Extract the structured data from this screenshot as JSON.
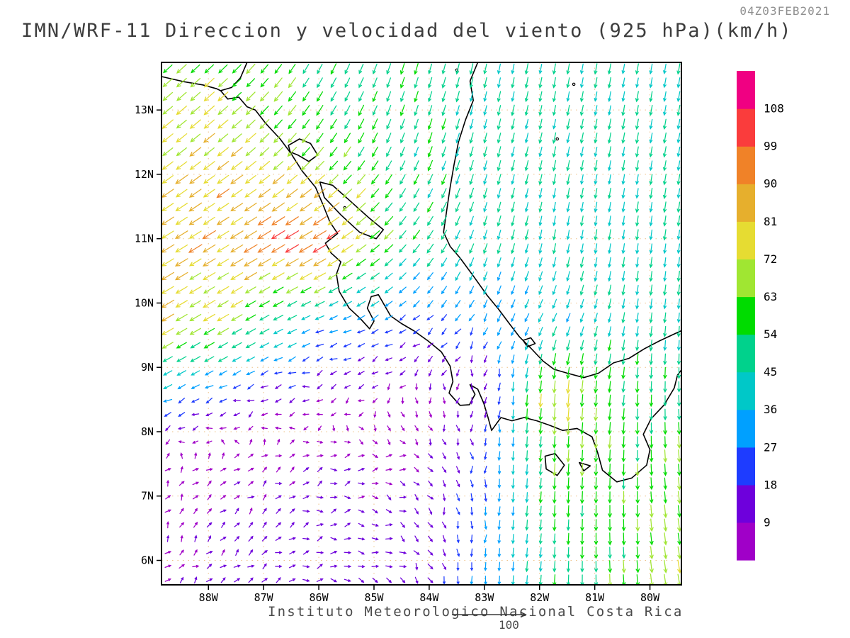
{
  "header": {
    "title": "IMN/WRF-11 Direccion y velocidad del viento (925 hPa)(km/h)",
    "timestamp": "04Z03FEB2021"
  },
  "footer": {
    "institute": "Instituto Meteorologico Nacional Costa Rica",
    "reference_value": "100"
  },
  "colorbar": {
    "labels": [
      "108",
      "99",
      "90",
      "81",
      "72",
      "63",
      "54",
      "45",
      "36",
      "27",
      "18",
      "9"
    ]
  },
  "chart_data": {
    "type": "quiver",
    "title": "IMN/WRF-11 Direccion y velocidad del viento (925 hPa)(km/h)",
    "level": "925 hPa",
    "units": "km/h",
    "valid_time": "04Z03FEB2021",
    "legend_position": "right",
    "arrow_spacing_px": 19.5,
    "extent": {
      "lon_min": -88.85,
      "lon_max": -79.43,
      "lat_min": 5.62,
      "lat_max": 13.74
    },
    "axes": {
      "lat_ticks": [
        {
          "value": 13,
          "label": "13N"
        },
        {
          "value": 12,
          "label": "12N"
        },
        {
          "value": 11,
          "label": "11N"
        },
        {
          "value": 10,
          "label": "10N"
        },
        {
          "value": 9,
          "label": "9N"
        },
        {
          "value": 8,
          "label": "8N"
        },
        {
          "value": 7,
          "label": "7N"
        },
        {
          "value": 6,
          "label": "6N"
        }
      ],
      "lon_ticks": [
        {
          "value": -88,
          "label": "88W"
        },
        {
          "value": -87,
          "label": "87W"
        },
        {
          "value": -86,
          "label": "86W"
        },
        {
          "value": -85,
          "label": "85W"
        },
        {
          "value": -84,
          "label": "84W"
        },
        {
          "value": -83,
          "label": "83W"
        },
        {
          "value": -82,
          "label": "82W"
        },
        {
          "value": -81,
          "label": "81W"
        },
        {
          "value": -80,
          "label": "80W"
        }
      ]
    },
    "speed_bins_kmh": [
      9,
      18,
      27,
      36,
      45,
      54,
      63,
      72,
      81,
      90,
      99,
      108
    ],
    "palette": [
      "#a000c8",
      "#6e00dc",
      "#1e3cff",
      "#00a0ff",
      "#00c8c8",
      "#00d28c",
      "#00dc00",
      "#a0e632",
      "#e6dc32",
      "#e6af2d",
      "#f08228",
      "#fa3c3c",
      "#f00082"
    ],
    "wind_grid": {
      "comment": "u=eastward, v=northward wind components in km/h on coarse control grid; field bilinearly interpolated",
      "lons": [
        -88.8,
        -87.5,
        -86.0,
        -84.5,
        -83.0,
        -81.8,
        -80.5,
        -79.4
      ],
      "lats": [
        13.7,
        12.5,
        11.0,
        9.7,
        8.6,
        7.5,
        6.4,
        5.6
      ],
      "u": [
        [
          -50,
          -45,
          -25,
          -15,
          -10,
          -8,
          -8,
          -8
        ],
        [
          -60,
          -58,
          -35,
          -18,
          -12,
          -10,
          -8,
          -8
        ],
        [
          -72,
          -76,
          -88,
          -35,
          -14,
          -8,
          -6,
          -6
        ],
        [
          -65,
          -55,
          -30,
          -20,
          -12,
          -18,
          -8,
          -4
        ],
        [
          -28,
          -18,
          -10,
          -4,
          2,
          -6,
          -6,
          2
        ],
        [
          4,
          7,
          9,
          8,
          0,
          -4,
          -2,
          6
        ],
        [
          5,
          8,
          11,
          10,
          -2,
          -4,
          2,
          10
        ],
        [
          6,
          9,
          12,
          11,
          -2,
          -4,
          4,
          12
        ]
      ],
      "v": [
        [
          -45,
          -45,
          -48,
          -48,
          -46,
          -45,
          -44,
          -44
        ],
        [
          -48,
          -48,
          -48,
          -48,
          -46,
          -45,
          -44,
          -44
        ],
        [
          -45,
          -46,
          -52,
          -40,
          -44,
          -44,
          -44,
          -44
        ],
        [
          -38,
          -32,
          -12,
          -12,
          -25,
          -35,
          -44,
          -44
        ],
        [
          -14,
          -8,
          -4,
          -6,
          -10,
          -75,
          -58,
          -50
        ],
        [
          4,
          5,
          4,
          -2,
          -22,
          -62,
          -58,
          -60
        ],
        [
          7,
          6,
          3,
          -6,
          -28,
          -50,
          -58,
          -66
        ],
        [
          6,
          5,
          2,
          -7,
          -30,
          -52,
          -60,
          -68
        ]
      ]
    },
    "map": {
      "coastlines": [
        [
          [
            -88.85,
            13.52
          ],
          [
            -88.45,
            13.44
          ],
          [
            -88.1,
            13.39
          ],
          [
            -87.85,
            13.33
          ],
          [
            -87.78,
            13.3
          ]
        ],
        [
          [
            -87.3,
            13.74
          ],
          [
            -87.42,
            13.5
          ],
          [
            -87.58,
            13.35
          ],
          [
            -87.78,
            13.3
          ],
          [
            -87.65,
            13.17
          ],
          [
            -87.45,
            13.2
          ],
          [
            -87.3,
            13.05
          ],
          [
            -87.15,
            13.0
          ],
          [
            -86.95,
            12.78
          ],
          [
            -86.7,
            12.55
          ],
          [
            -86.5,
            12.32
          ],
          [
            -86.3,
            12.05
          ],
          [
            -86.06,
            11.8
          ],
          [
            -85.92,
            11.52
          ],
          [
            -85.8,
            11.26
          ],
          [
            -85.66,
            11.08
          ],
          [
            -85.88,
            10.93
          ],
          [
            -85.78,
            10.78
          ],
          [
            -85.6,
            10.64
          ],
          [
            -85.68,
            10.45
          ],
          [
            -85.63,
            10.18
          ],
          [
            -85.45,
            9.92
          ],
          [
            -85.25,
            9.76
          ],
          [
            -85.08,
            9.6
          ],
          [
            -85.0,
            9.72
          ],
          [
            -85.12,
            9.92
          ],
          [
            -85.05,
            10.1
          ],
          [
            -84.92,
            10.13
          ],
          [
            -84.8,
            9.95
          ],
          [
            -84.7,
            9.8
          ],
          [
            -84.5,
            9.68
          ],
          [
            -84.28,
            9.57
          ],
          [
            -84.02,
            9.41
          ],
          [
            -83.78,
            9.24
          ],
          [
            -83.62,
            9.02
          ],
          [
            -83.57,
            8.78
          ],
          [
            -83.64,
            8.6
          ],
          [
            -83.44,
            8.41
          ],
          [
            -83.27,
            8.42
          ],
          [
            -83.17,
            8.58
          ],
          [
            -83.26,
            8.73
          ],
          [
            -83.12,
            8.66
          ],
          [
            -83.01,
            8.44
          ],
          [
            -82.94,
            8.24
          ],
          [
            -82.87,
            8.02
          ],
          [
            -82.7,
            8.22
          ],
          [
            -82.5,
            8.17
          ],
          [
            -82.28,
            8.22
          ],
          [
            -82.05,
            8.17
          ],
          [
            -81.82,
            8.1
          ],
          [
            -81.58,
            8.02
          ],
          [
            -81.32,
            8.05
          ],
          [
            -81.05,
            7.92
          ],
          [
            -80.95,
            7.68
          ],
          [
            -80.86,
            7.4
          ],
          [
            -80.6,
            7.22
          ],
          [
            -80.33,
            7.28
          ],
          [
            -80.06,
            7.48
          ],
          [
            -80.0,
            7.72
          ],
          [
            -80.12,
            7.96
          ],
          [
            -79.98,
            8.2
          ],
          [
            -79.74,
            8.42
          ],
          [
            -79.56,
            8.68
          ],
          [
            -79.5,
            8.88
          ],
          [
            -79.43,
            8.96
          ]
        ],
        [
          [
            -83.12,
            13.74
          ],
          [
            -83.26,
            13.45
          ],
          [
            -83.2,
            13.15
          ],
          [
            -83.34,
            12.85
          ],
          [
            -83.47,
            12.5
          ],
          [
            -83.55,
            12.15
          ],
          [
            -83.62,
            11.8
          ],
          [
            -83.68,
            11.45
          ],
          [
            -83.74,
            11.1
          ],
          [
            -83.62,
            10.88
          ],
          [
            -83.44,
            10.7
          ],
          [
            -83.2,
            10.42
          ],
          [
            -82.95,
            10.12
          ],
          [
            -82.74,
            9.9
          ],
          [
            -82.54,
            9.67
          ],
          [
            -82.36,
            9.47
          ],
          [
            -82.16,
            9.3
          ],
          [
            -81.94,
            9.1
          ],
          [
            -81.74,
            8.97
          ],
          [
            -81.5,
            8.91
          ],
          [
            -81.2,
            8.84
          ],
          [
            -80.93,
            8.91
          ],
          [
            -80.66,
            9.07
          ],
          [
            -80.38,
            9.14
          ],
          [
            -80.1,
            9.29
          ],
          [
            -79.83,
            9.41
          ],
          [
            -79.58,
            9.51
          ],
          [
            -79.43,
            9.57
          ]
        ]
      ],
      "lakes": [
        [
          [
            -86.55,
            12.45
          ],
          [
            -86.35,
            12.55
          ],
          [
            -86.15,
            12.48
          ],
          [
            -86.02,
            12.3
          ],
          [
            -86.18,
            12.2
          ],
          [
            -86.38,
            12.3
          ],
          [
            -86.52,
            12.35
          ]
        ],
        [
          [
            -85.98,
            11.88
          ],
          [
            -85.75,
            11.83
          ],
          [
            -85.45,
            11.6
          ],
          [
            -85.1,
            11.33
          ],
          [
            -84.83,
            11.14
          ],
          [
            -84.96,
            11.0
          ],
          [
            -85.26,
            11.1
          ],
          [
            -85.6,
            11.37
          ],
          [
            -85.9,
            11.64
          ]
        ]
      ],
      "islands": [
        [
          [
            -81.9,
            7.62
          ],
          [
            -81.72,
            7.66
          ],
          [
            -81.55,
            7.48
          ],
          [
            -81.68,
            7.32
          ],
          [
            -81.88,
            7.42
          ]
        ],
        [
          [
            -81.28,
            7.52
          ],
          [
            -81.08,
            7.47
          ],
          [
            -81.2,
            7.39
          ]
        ],
        [
          [
            -82.3,
            9.42
          ],
          [
            -82.16,
            9.46
          ],
          [
            -82.08,
            9.37
          ],
          [
            -82.22,
            9.32
          ]
        ]
      ],
      "point_islands": [
        {
          "lon": -81.68,
          "lat": 12.55
        },
        {
          "lon": -81.38,
          "lat": 13.4
        },
        {
          "lon": -83.5,
          "lat": 13.62
        },
        {
          "lon": -85.53,
          "lat": 11.48
        }
      ]
    }
  }
}
